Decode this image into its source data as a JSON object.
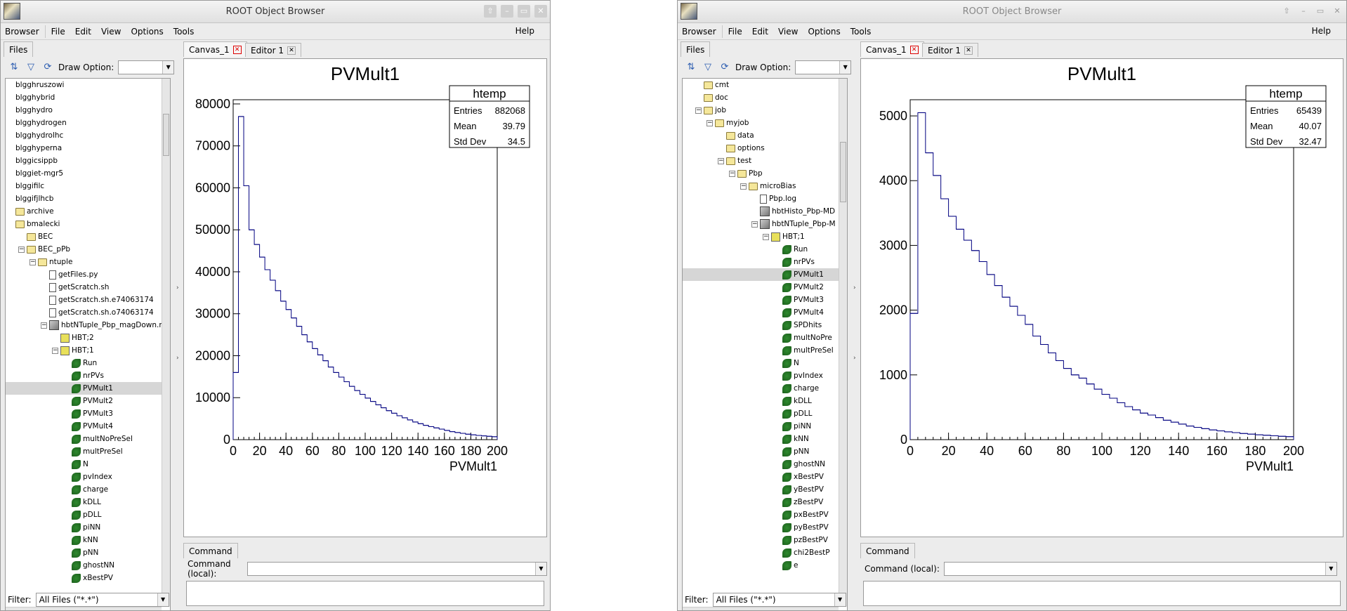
{
  "left": {
    "title": "ROOT Object Browser",
    "menu": [
      "Browser",
      "File",
      "Edit",
      "View",
      "Options",
      "Tools"
    ],
    "help": "Help",
    "files_tab": "Files",
    "draw_option_label": "Draw Option:",
    "tabs": [
      "Canvas_1",
      "Editor 1"
    ],
    "filter_label": "Filter:",
    "filter_value": "All Files (\"*.*\")",
    "command_tab": "Command",
    "command_label": "Command (local):",
    "tree": [
      {
        "t": "text",
        "l": "blgghruszowi",
        "d": 0
      },
      {
        "t": "text",
        "l": "blgghybrid",
        "d": 0
      },
      {
        "t": "text",
        "l": "blgghydro",
        "d": 0
      },
      {
        "t": "text",
        "l": "blgghydrogen",
        "d": 0
      },
      {
        "t": "text",
        "l": "blgghydrolhc",
        "d": 0
      },
      {
        "t": "text",
        "l": "blgghyperna",
        "d": 0
      },
      {
        "t": "text",
        "l": "blggicsippb",
        "d": 0
      },
      {
        "t": "text",
        "l": "blggiet-mgr5",
        "d": 0
      },
      {
        "t": "text",
        "l": "blggifilc",
        "d": 0
      },
      {
        "t": "text",
        "l": "blggifjlhcb",
        "d": 0
      },
      {
        "t": "folder",
        "l": "archive",
        "d": 0
      },
      {
        "t": "folder",
        "l": "bmalecki",
        "d": 0
      },
      {
        "t": "folder",
        "l": "BEC",
        "d": 1
      },
      {
        "t": "folder",
        "l": "BEC_pPb",
        "d": 1,
        "e": "-"
      },
      {
        "t": "folder",
        "l": "ntuple",
        "d": 2,
        "e": "-"
      },
      {
        "t": "file",
        "l": "getFiles.py",
        "d": 3
      },
      {
        "t": "file",
        "l": "getScratch.sh",
        "d": 3
      },
      {
        "t": "file",
        "l": "getScratch.sh.e74063174",
        "d": 3
      },
      {
        "t": "file",
        "l": "getScratch.sh.o74063174",
        "d": 3
      },
      {
        "t": "root",
        "l": "hbtNTuple_Pbp_magDown.root",
        "d": 3,
        "e": "-"
      },
      {
        "t": "tree",
        "l": "HBT;2",
        "d": 4
      },
      {
        "t": "tree",
        "l": "HBT;1",
        "d": 4,
        "e": "-"
      },
      {
        "t": "leaf",
        "l": "Run",
        "d": 5
      },
      {
        "t": "leaf",
        "l": "nrPVs",
        "d": 5
      },
      {
        "t": "leaf",
        "l": "PVMult1",
        "d": 5,
        "sel": true
      },
      {
        "t": "leaf",
        "l": "PVMult2",
        "d": 5
      },
      {
        "t": "leaf",
        "l": "PVMult3",
        "d": 5
      },
      {
        "t": "leaf",
        "l": "PVMult4",
        "d": 5
      },
      {
        "t": "leaf",
        "l": "multNoPreSel",
        "d": 5
      },
      {
        "t": "leaf",
        "l": "multPreSel",
        "d": 5
      },
      {
        "t": "leaf",
        "l": "N",
        "d": 5
      },
      {
        "t": "leaf",
        "l": "pvIndex",
        "d": 5
      },
      {
        "t": "leaf",
        "l": "charge",
        "d": 5
      },
      {
        "t": "leaf",
        "l": "kDLL",
        "d": 5
      },
      {
        "t": "leaf",
        "l": "pDLL",
        "d": 5
      },
      {
        "t": "leaf",
        "l": "piNN",
        "d": 5
      },
      {
        "t": "leaf",
        "l": "kNN",
        "d": 5
      },
      {
        "t": "leaf",
        "l": "pNN",
        "d": 5
      },
      {
        "t": "leaf",
        "l": "ghostNN",
        "d": 5
      },
      {
        "t": "leaf",
        "l": "xBestPV",
        "d": 5
      }
    ]
  },
  "right": {
    "title": "ROOT Object Browser",
    "menu": [
      "Browser",
      "File",
      "Edit",
      "View",
      "Options",
      "Tools"
    ],
    "help": "Help",
    "files_tab": "Files",
    "draw_option_label": "Draw Option:",
    "tabs": [
      "Canvas_1",
      "Editor 1"
    ],
    "filter_label": "Filter:",
    "filter_value": "All Files (\"*.*\")",
    "command_tab": "Command",
    "command_label": "Command (local):",
    "tree": [
      {
        "t": "folder",
        "l": "cmt",
        "d": 1
      },
      {
        "t": "folder",
        "l": "doc",
        "d": 1
      },
      {
        "t": "folder",
        "l": "job",
        "d": 1,
        "e": "-"
      },
      {
        "t": "folder",
        "l": "myjob",
        "d": 2,
        "e": "-"
      },
      {
        "t": "folder",
        "l": "data",
        "d": 3
      },
      {
        "t": "folder",
        "l": "options",
        "d": 3
      },
      {
        "t": "folder",
        "l": "test",
        "d": 3,
        "e": "-"
      },
      {
        "t": "folder",
        "l": "Pbp",
        "d": 4,
        "e": "-"
      },
      {
        "t": "folder",
        "l": "microBias",
        "d": 5,
        "e": "-"
      },
      {
        "t": "file",
        "l": "Pbp.log",
        "d": 6
      },
      {
        "t": "root",
        "l": "hbtHisto_Pbp-MD",
        "d": 6
      },
      {
        "t": "root",
        "l": "hbtNTuple_Pbp-M",
        "d": 6,
        "e": "-"
      },
      {
        "t": "tree",
        "l": "HBT;1",
        "d": 7,
        "e": "-"
      },
      {
        "t": "leaf",
        "l": "Run",
        "d": 8
      },
      {
        "t": "leaf",
        "l": "nrPVs",
        "d": 8
      },
      {
        "t": "leaf",
        "l": "PVMult1",
        "d": 8,
        "sel": true
      },
      {
        "t": "leaf",
        "l": "PVMult2",
        "d": 8
      },
      {
        "t": "leaf",
        "l": "PVMult3",
        "d": 8
      },
      {
        "t": "leaf",
        "l": "PVMult4",
        "d": 8
      },
      {
        "t": "leaf",
        "l": "SPDhits",
        "d": 8
      },
      {
        "t": "leaf",
        "l": "multNoPre",
        "d": 8
      },
      {
        "t": "leaf",
        "l": "multPreSel",
        "d": 8
      },
      {
        "t": "leaf",
        "l": "N",
        "d": 8
      },
      {
        "t": "leaf",
        "l": "pvIndex",
        "d": 8
      },
      {
        "t": "leaf",
        "l": "charge",
        "d": 8
      },
      {
        "t": "leaf",
        "l": "kDLL",
        "d": 8
      },
      {
        "t": "leaf",
        "l": "pDLL",
        "d": 8
      },
      {
        "t": "leaf",
        "l": "piNN",
        "d": 8
      },
      {
        "t": "leaf",
        "l": "kNN",
        "d": 8
      },
      {
        "t": "leaf",
        "l": "pNN",
        "d": 8
      },
      {
        "t": "leaf",
        "l": "ghostNN",
        "d": 8
      },
      {
        "t": "leaf",
        "l": "xBestPV",
        "d": 8
      },
      {
        "t": "leaf",
        "l": "yBestPV",
        "d": 8
      },
      {
        "t": "leaf",
        "l": "zBestPV",
        "d": 8
      },
      {
        "t": "leaf",
        "l": "pxBestPV",
        "d": 8
      },
      {
        "t": "leaf",
        "l": "pyBestPV",
        "d": 8
      },
      {
        "t": "leaf",
        "l": "pzBestPV",
        "d": 8
      },
      {
        "t": "leaf",
        "l": "chi2BestP",
        "d": 8
      },
      {
        "t": "leaf",
        "l": "e",
        "d": 8
      }
    ]
  },
  "chart_data": [
    {
      "type": "bar",
      "title": "PVMult1",
      "xlabel": "PVMult1",
      "ylabel": "",
      "xlim": [
        0,
        200
      ],
      "ylim": [
        0,
        81000
      ],
      "xticks": [
        0,
        20,
        40,
        60,
        80,
        100,
        120,
        140,
        160,
        180,
        200
      ],
      "yticks": [
        0,
        10000,
        20000,
        30000,
        40000,
        50000,
        60000,
        70000,
        80000
      ],
      "stats": {
        "name": "htemp",
        "rows": [
          [
            "Entries",
            "882068"
          ],
          [
            "Mean",
            "39.79"
          ],
          [
            "Std Dev",
            "34.5"
          ]
        ]
      },
      "bin_width": 4,
      "values": [
        16000,
        77000,
        60500,
        50000,
        46500,
        43500,
        40500,
        38000,
        35500,
        33000,
        31000,
        29000,
        27000,
        25000,
        23300,
        21700,
        20200,
        18800,
        17300,
        16000,
        14900,
        13800,
        12700,
        11700,
        10800,
        9900,
        9100,
        8300,
        7600,
        6900,
        6300,
        5700,
        5200,
        4700,
        4200,
        3800,
        3400,
        3100,
        2800,
        2500,
        2200,
        1900,
        1700,
        1500,
        1300,
        1150,
        1000,
        900,
        800,
        700
      ]
    },
    {
      "type": "bar",
      "title": "PVMult1",
      "xlabel": "PVMult1",
      "ylabel": "",
      "xlim": [
        0,
        200
      ],
      "ylim": [
        0,
        5250
      ],
      "xticks": [
        0,
        20,
        40,
        60,
        80,
        100,
        120,
        140,
        160,
        180,
        200
      ],
      "yticks": [
        0,
        1000,
        2000,
        3000,
        4000,
        5000
      ],
      "stats": {
        "name": "htemp",
        "rows": [
          [
            "Entries",
            "65439"
          ],
          [
            "Mean",
            "40.07"
          ],
          [
            "Std Dev",
            "32.47"
          ]
        ]
      },
      "bin_width": 4,
      "values": [
        1950,
        5050,
        4430,
        4080,
        3720,
        3450,
        3250,
        3080,
        2920,
        2750,
        2550,
        2380,
        2200,
        2060,
        1920,
        1780,
        1600,
        1470,
        1340,
        1220,
        1100,
        1000,
        950,
        860,
        780,
        700,
        640,
        570,
        510,
        460,
        410,
        380,
        340,
        300,
        270,
        240,
        210,
        190,
        170,
        150,
        135,
        120,
        108,
        95,
        85,
        75,
        68,
        60,
        52,
        46
      ]
    }
  ]
}
